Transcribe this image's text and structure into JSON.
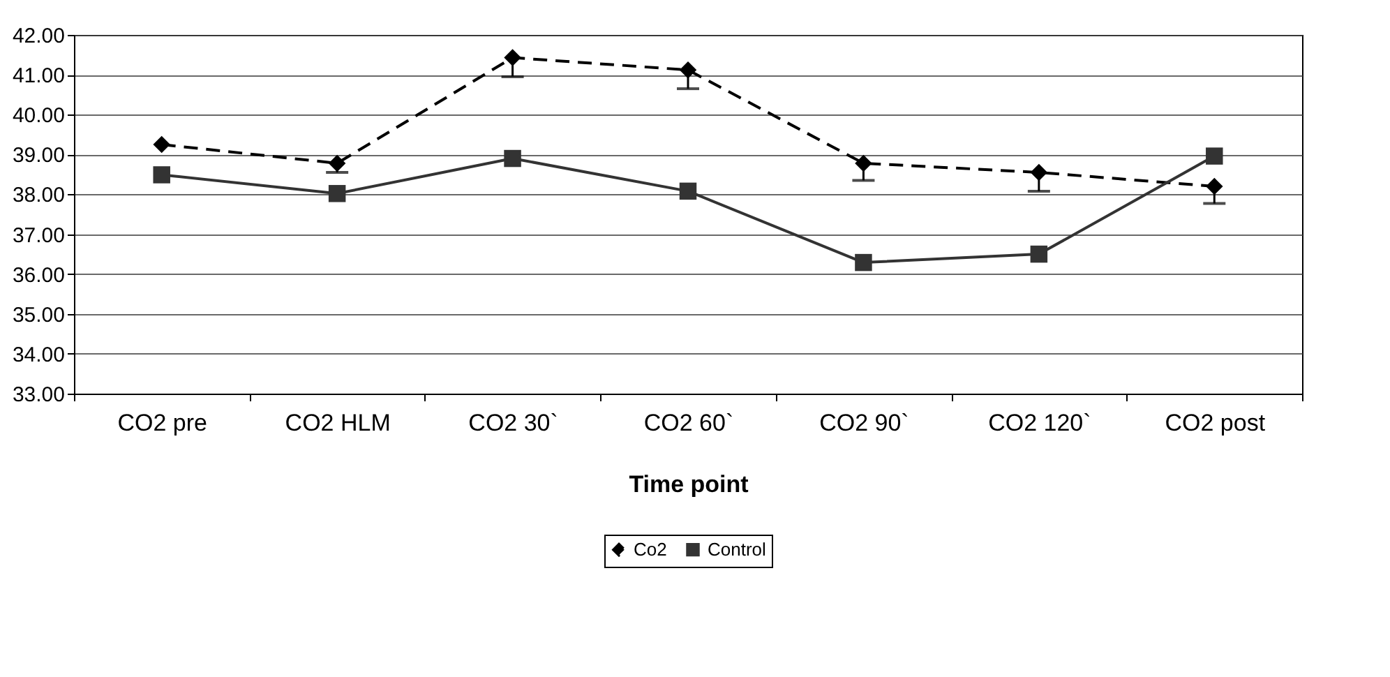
{
  "chart_data": {
    "type": "line",
    "xlabel": "Time point",
    "categories": [
      "CO2 pre",
      "CO2 HLM",
      "CO2 30`",
      "CO2 60`",
      "CO2 90`",
      "CO2 120`",
      "CO2 post"
    ],
    "ylim": [
      33,
      42
    ],
    "yticks": [
      {
        "value": 33,
        "label": "33.00"
      },
      {
        "value": 34,
        "label": "34.00"
      },
      {
        "value": 35,
        "label": "35.00"
      },
      {
        "value": 36,
        "label": "36.00"
      },
      {
        "value": 37,
        "label": "37.00"
      },
      {
        "value": 38,
        "label": "38.00"
      },
      {
        "value": 39,
        "label": "39.00"
      },
      {
        "value": 40,
        "label": "40.00"
      },
      {
        "value": 41,
        "label": "41.00"
      },
      {
        "value": 42,
        "label": "42.00"
      }
    ],
    "grid": "y",
    "legend": "bottom",
    "series": [
      {
        "name": "Co2",
        "color": "#000000",
        "marker": "diamond",
        "line_style": "dashed",
        "values": [
          39.25,
          38.78,
          41.43,
          41.12,
          38.78,
          38.55,
          38.2
        ],
        "errors": [
          null,
          [
            38.55,
            38.78
          ],
          [
            40.95,
            41.43
          ],
          [
            40.65,
            41.12
          ],
          [
            38.35,
            38.78
          ],
          [
            38.08,
            38.55
          ],
          [
            37.77,
            38.2
          ]
        ]
      },
      {
        "name": "Control",
        "color": "#333333",
        "marker": "square",
        "line_style": "solid",
        "values": [
          38.49,
          38.02,
          38.9,
          38.08,
          36.29,
          36.5,
          38.96
        ]
      }
    ]
  }
}
